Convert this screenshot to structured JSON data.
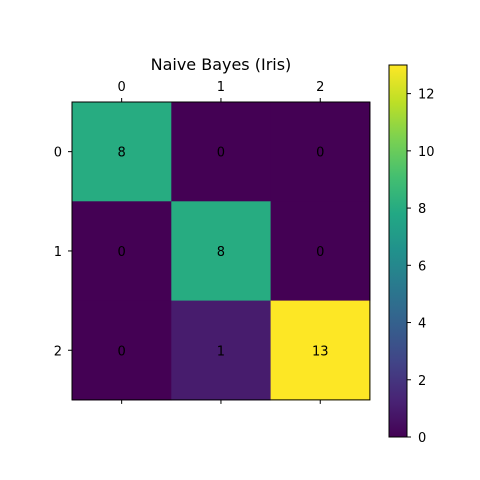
{
  "chart_data": {
    "type": "heatmap",
    "title": "Naive Bayes (Iris)",
    "x_categories": [
      "0",
      "1",
      "2"
    ],
    "y_categories": [
      "0",
      "1",
      "2"
    ],
    "values": [
      [
        8,
        0,
        0
      ],
      [
        0,
        8,
        0
      ],
      [
        0,
        1,
        13
      ]
    ],
    "colormap": "viridis",
    "color_range": [
      0,
      13
    ],
    "colorbar_ticks": [
      0,
      2,
      4,
      6,
      8,
      10,
      12
    ],
    "grid": false
  }
}
